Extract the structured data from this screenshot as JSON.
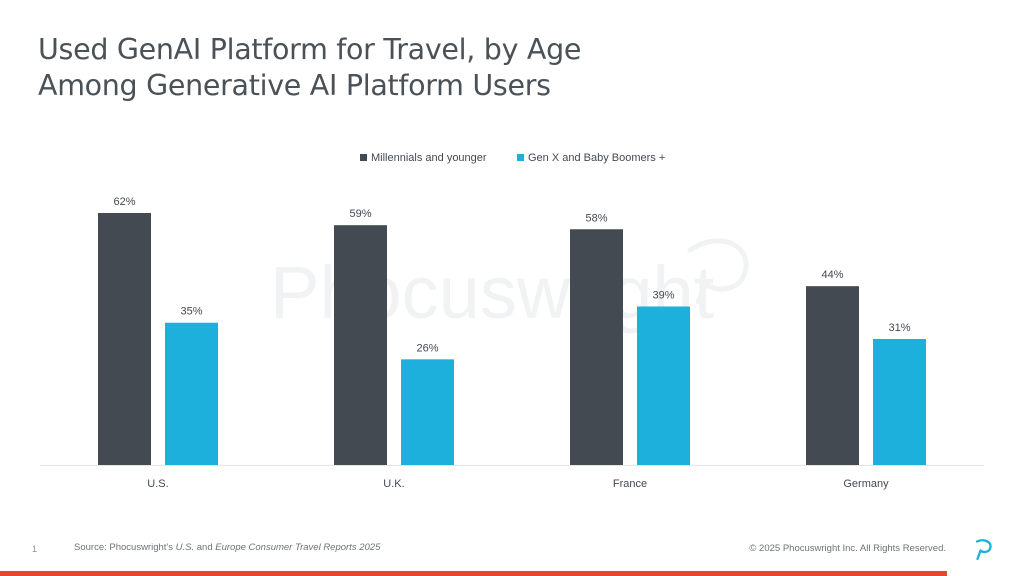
{
  "title": {
    "line1": "Used GenAI Platform for Travel, by Age",
    "line2": "Among Generative AI Platform Users"
  },
  "watermark": "Phocuswright",
  "chart_data": {
    "type": "bar",
    "categories": [
      "U.S.",
      "U.K.",
      "France",
      "Germany"
    ],
    "series": [
      {
        "name": "Millennials and younger",
        "values": [
          62,
          59,
          58,
          44
        ],
        "color": "#434a51"
      },
      {
        "name": "Gen X and Baby Boomers +",
        "values": [
          35,
          26,
          39,
          31
        ],
        "color": "#1eb0dc"
      }
    ],
    "value_format": "percent",
    "ylim": [
      0,
      70
    ],
    "grid": false,
    "legend_position": "top-center"
  },
  "footer": {
    "source_prefix": "Source: Phocuswright's ",
    "source_us": "U.S.",
    "source_and": " and ",
    "source_europe": "Europe Consumer Travel Reports 2025",
    "copyright": "© 2025 Phocuswright Inc. All Rights Reserved.",
    "page_number": "1"
  },
  "colors": {
    "accent_bar": "#e4472d",
    "logo": "#1eb0dc"
  }
}
